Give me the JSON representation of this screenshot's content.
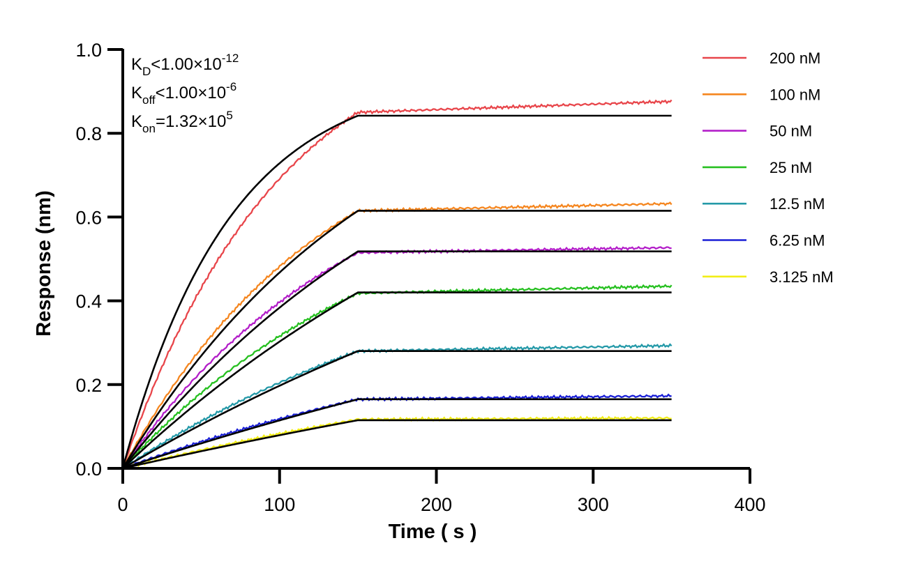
{
  "chart_data": {
    "type": "line",
    "title": "",
    "xlabel": "Time ( s )",
    "ylabel": "Response (nm)",
    "xlim": [
      0,
      400
    ],
    "ylim": [
      0,
      1.0
    ],
    "xticks": [
      "0",
      "100",
      "200",
      "300",
      "400"
    ],
    "yticks": [
      "0.0",
      "0.2",
      "0.4",
      "0.6",
      "0.8",
      "1.0"
    ],
    "grid": false,
    "legend_position": "right",
    "association_end_s": 150,
    "end_s": 350,
    "annotations": [
      {
        "k": "K",
        "sub": "D",
        "text": "<1.00×10",
        "sup": "-12"
      },
      {
        "k": "K",
        "sub": "off",
        "text": "<1.00×10",
        "sup": "-6"
      },
      {
        "k": "K",
        "sub": "on",
        "text": "=1.32×10",
        "sup": "5"
      }
    ],
    "series": [
      {
        "name": "200 nM",
        "color": "#e8454a",
        "plateau": 0.85,
        "final": 0.876,
        "shape": 1.5
      },
      {
        "name": "100 nM",
        "color": "#f5861f",
        "plateau": 0.615,
        "final": 0.632,
        "shape": 1.15
      },
      {
        "name": "50 nM",
        "color": "#b31ec9",
        "plateau": 0.515,
        "final": 0.527,
        "shape": 1.0
      },
      {
        "name": "25 nM",
        "color": "#26c020",
        "plateau": 0.418,
        "final": 0.435,
        "shape": 0.85
      },
      {
        "name": "12.5 nM",
        "color": "#2499a8",
        "plateau": 0.28,
        "final": 0.293,
        "shape": 0.6
      },
      {
        "name": "6.25 nM",
        "color": "#1a1fd6",
        "plateau": 0.165,
        "final": 0.173,
        "shape": 0.45
      },
      {
        "name": "3.125 nM",
        "color": "#f2ee16",
        "plateau": 0.117,
        "final": 0.12,
        "shape": 0.35
      }
    ],
    "fits": [
      {
        "plateau": 0.842,
        "shape": 2.2
      },
      {
        "plateau": 0.615,
        "shape": 0.9
      },
      {
        "plateau": 0.518,
        "shape": 0.7
      },
      {
        "plateau": 0.42,
        "shape": 0.5
      },
      {
        "plateau": 0.28,
        "shape": 0.35
      },
      {
        "plateau": 0.165,
        "shape": 0.25
      },
      {
        "plateau": 0.115,
        "shape": 0.2
      }
    ],
    "fit_color": "#000000"
  }
}
